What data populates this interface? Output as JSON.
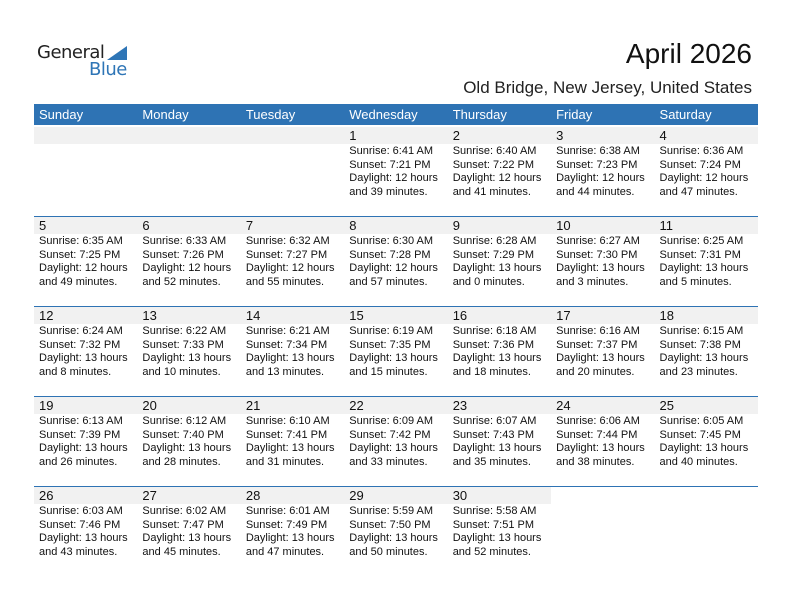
{
  "logo": {
    "general": "General",
    "blue": "Blue"
  },
  "title": "April 2026",
  "location": "Old Bridge, New Jersey, United States",
  "days": [
    "Sunday",
    "Monday",
    "Tuesday",
    "Wednesday",
    "Thursday",
    "Friday",
    "Saturday"
  ],
  "weeks": [
    [
      null,
      null,
      null,
      {
        "d": "1",
        "sr": "Sunrise: 6:41 AM",
        "ss": "Sunset: 7:21 PM",
        "dl": "Daylight: 12 hours",
        "dm": "and 39 minutes."
      },
      {
        "d": "2",
        "sr": "Sunrise: 6:40 AM",
        "ss": "Sunset: 7:22 PM",
        "dl": "Daylight: 12 hours",
        "dm": "and 41 minutes."
      },
      {
        "d": "3",
        "sr": "Sunrise: 6:38 AM",
        "ss": "Sunset: 7:23 PM",
        "dl": "Daylight: 12 hours",
        "dm": "and 44 minutes."
      },
      {
        "d": "4",
        "sr": "Sunrise: 6:36 AM",
        "ss": "Sunset: 7:24 PM",
        "dl": "Daylight: 12 hours",
        "dm": "and 47 minutes."
      }
    ],
    [
      {
        "d": "5",
        "sr": "Sunrise: 6:35 AM",
        "ss": "Sunset: 7:25 PM",
        "dl": "Daylight: 12 hours",
        "dm": "and 49 minutes."
      },
      {
        "d": "6",
        "sr": "Sunrise: 6:33 AM",
        "ss": "Sunset: 7:26 PM",
        "dl": "Daylight: 12 hours",
        "dm": "and 52 minutes."
      },
      {
        "d": "7",
        "sr": "Sunrise: 6:32 AM",
        "ss": "Sunset: 7:27 PM",
        "dl": "Daylight: 12 hours",
        "dm": "and 55 minutes."
      },
      {
        "d": "8",
        "sr": "Sunrise: 6:30 AM",
        "ss": "Sunset: 7:28 PM",
        "dl": "Daylight: 12 hours",
        "dm": "and 57 minutes."
      },
      {
        "d": "9",
        "sr": "Sunrise: 6:28 AM",
        "ss": "Sunset: 7:29 PM",
        "dl": "Daylight: 13 hours",
        "dm": "and 0 minutes."
      },
      {
        "d": "10",
        "sr": "Sunrise: 6:27 AM",
        "ss": "Sunset: 7:30 PM",
        "dl": "Daylight: 13 hours",
        "dm": "and 3 minutes."
      },
      {
        "d": "11",
        "sr": "Sunrise: 6:25 AM",
        "ss": "Sunset: 7:31 PM",
        "dl": "Daylight: 13 hours",
        "dm": "and 5 minutes."
      }
    ],
    [
      {
        "d": "12",
        "sr": "Sunrise: 6:24 AM",
        "ss": "Sunset: 7:32 PM",
        "dl": "Daylight: 13 hours",
        "dm": "and 8 minutes."
      },
      {
        "d": "13",
        "sr": "Sunrise: 6:22 AM",
        "ss": "Sunset: 7:33 PM",
        "dl": "Daylight: 13 hours",
        "dm": "and 10 minutes."
      },
      {
        "d": "14",
        "sr": "Sunrise: 6:21 AM",
        "ss": "Sunset: 7:34 PM",
        "dl": "Daylight: 13 hours",
        "dm": "and 13 minutes."
      },
      {
        "d": "15",
        "sr": "Sunrise: 6:19 AM",
        "ss": "Sunset: 7:35 PM",
        "dl": "Daylight: 13 hours",
        "dm": "and 15 minutes."
      },
      {
        "d": "16",
        "sr": "Sunrise: 6:18 AM",
        "ss": "Sunset: 7:36 PM",
        "dl": "Daylight: 13 hours",
        "dm": "and 18 minutes."
      },
      {
        "d": "17",
        "sr": "Sunrise: 6:16 AM",
        "ss": "Sunset: 7:37 PM",
        "dl": "Daylight: 13 hours",
        "dm": "and 20 minutes."
      },
      {
        "d": "18",
        "sr": "Sunrise: 6:15 AM",
        "ss": "Sunset: 7:38 PM",
        "dl": "Daylight: 13 hours",
        "dm": "and 23 minutes."
      }
    ],
    [
      {
        "d": "19",
        "sr": "Sunrise: 6:13 AM",
        "ss": "Sunset: 7:39 PM",
        "dl": "Daylight: 13 hours",
        "dm": "and 26 minutes."
      },
      {
        "d": "20",
        "sr": "Sunrise: 6:12 AM",
        "ss": "Sunset: 7:40 PM",
        "dl": "Daylight: 13 hours",
        "dm": "and 28 minutes."
      },
      {
        "d": "21",
        "sr": "Sunrise: 6:10 AM",
        "ss": "Sunset: 7:41 PM",
        "dl": "Daylight: 13 hours",
        "dm": "and 31 minutes."
      },
      {
        "d": "22",
        "sr": "Sunrise: 6:09 AM",
        "ss": "Sunset: 7:42 PM",
        "dl": "Daylight: 13 hours",
        "dm": "and 33 minutes."
      },
      {
        "d": "23",
        "sr": "Sunrise: 6:07 AM",
        "ss": "Sunset: 7:43 PM",
        "dl": "Daylight: 13 hours",
        "dm": "and 35 minutes."
      },
      {
        "d": "24",
        "sr": "Sunrise: 6:06 AM",
        "ss": "Sunset: 7:44 PM",
        "dl": "Daylight: 13 hours",
        "dm": "and 38 minutes."
      },
      {
        "d": "25",
        "sr": "Sunrise: 6:05 AM",
        "ss": "Sunset: 7:45 PM",
        "dl": "Daylight: 13 hours",
        "dm": "and 40 minutes."
      }
    ],
    [
      {
        "d": "26",
        "sr": "Sunrise: 6:03 AM",
        "ss": "Sunset: 7:46 PM",
        "dl": "Daylight: 13 hours",
        "dm": "and 43 minutes."
      },
      {
        "d": "27",
        "sr": "Sunrise: 6:02 AM",
        "ss": "Sunset: 7:47 PM",
        "dl": "Daylight: 13 hours",
        "dm": "and 45 minutes."
      },
      {
        "d": "28",
        "sr": "Sunrise: 6:01 AM",
        "ss": "Sunset: 7:49 PM",
        "dl": "Daylight: 13 hours",
        "dm": "and 47 minutes."
      },
      {
        "d": "29",
        "sr": "Sunrise: 5:59 AM",
        "ss": "Sunset: 7:50 PM",
        "dl": "Daylight: 13 hours",
        "dm": "and 50 minutes."
      },
      {
        "d": "30",
        "sr": "Sunrise: 5:58 AM",
        "ss": "Sunset: 7:51 PM",
        "dl": "Daylight: 13 hours",
        "dm": "and 52 minutes."
      },
      null,
      null
    ]
  ]
}
